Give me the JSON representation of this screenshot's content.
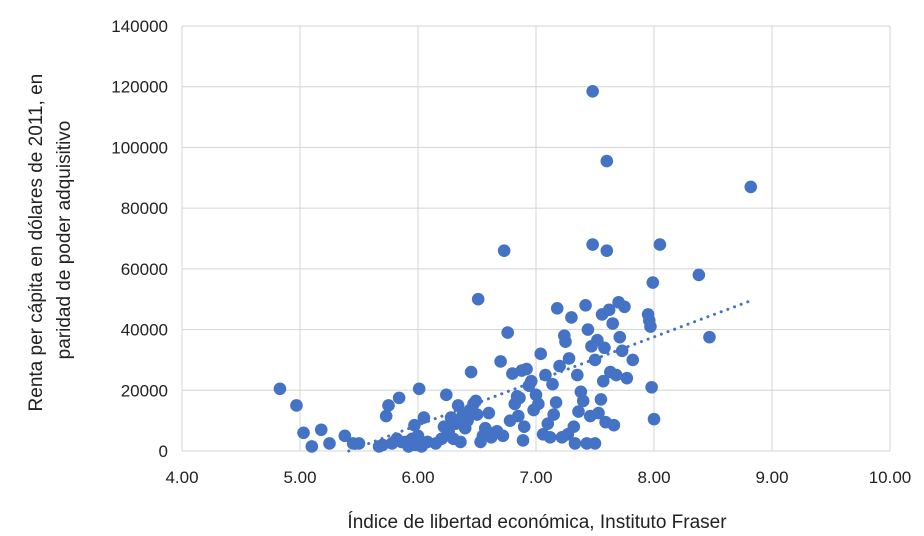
{
  "chart_data": {
    "type": "scatter",
    "xlabel": "Índice de libertad económica, Instituto Fraser",
    "ylabel": [
      "Renta per cápita en dólares de 2011, en",
      "paridad de poder adquisitivo"
    ],
    "xlim": [
      4.0,
      10.0
    ],
    "ylim": [
      0,
      140000
    ],
    "x_ticks": [
      "4.00",
      "5.00",
      "6.00",
      "7.00",
      "8.00",
      "9.00",
      "10.00"
    ],
    "y_ticks": [
      "0",
      "20000",
      "40000",
      "60000",
      "80000",
      "100000",
      "120000",
      "140000"
    ],
    "grid": true,
    "legend": "none",
    "colors": {
      "points": "#4472c4",
      "trendline": "#4472c4",
      "grid": "#d4d4d4"
    },
    "trendline": {
      "style": "dotted",
      "x": [
        5.0,
        8.82
      ],
      "y": [
        -6000,
        49500
      ]
    },
    "points": [
      [
        4.83,
        20500
      ],
      [
        4.97,
        15000
      ],
      [
        5.03,
        6000
      ],
      [
        5.1,
        1500
      ],
      [
        5.18,
        7000
      ],
      [
        5.25,
        2500
      ],
      [
        5.38,
        5000
      ],
      [
        5.45,
        2500
      ],
      [
        5.5,
        2500
      ],
      [
        5.67,
        1500
      ],
      [
        5.7,
        2000
      ],
      [
        5.73,
        11500
      ],
      [
        5.75,
        15000
      ],
      [
        5.78,
        2500
      ],
      [
        5.82,
        4000
      ],
      [
        5.84,
        17500
      ],
      [
        5.86,
        3000
      ],
      [
        5.9,
        3000
      ],
      [
        5.92,
        1500
      ],
      [
        5.95,
        4000
      ],
      [
        5.97,
        8500
      ],
      [
        5.98,
        2000
      ],
      [
        6.0,
        5000
      ],
      [
        6.01,
        20500
      ],
      [
        6.03,
        1500
      ],
      [
        6.05,
        11000
      ],
      [
        6.08,
        3000
      ],
      [
        6.15,
        2500
      ],
      [
        6.2,
        4000
      ],
      [
        6.22,
        8000
      ],
      [
        6.24,
        18500
      ],
      [
        6.26,
        6500
      ],
      [
        6.28,
        11000
      ],
      [
        6.3,
        4000
      ],
      [
        6.32,
        9000
      ],
      [
        6.34,
        15000
      ],
      [
        6.36,
        3000
      ],
      [
        6.38,
        12000
      ],
      [
        6.4,
        7500
      ],
      [
        6.42,
        10000
      ],
      [
        6.44,
        13500
      ],
      [
        6.45,
        26000
      ],
      [
        6.47,
        15500
      ],
      [
        6.49,
        16500
      ],
      [
        6.5,
        12000
      ],
      [
        6.51,
        50000
      ],
      [
        6.53,
        3000
      ],
      [
        6.55,
        5000
      ],
      [
        6.57,
        7500
      ],
      [
        6.6,
        12500
      ],
      [
        6.62,
        4500
      ],
      [
        6.65,
        6000
      ],
      [
        6.67,
        6500
      ],
      [
        6.7,
        29500
      ],
      [
        6.72,
        5000
      ],
      [
        6.73,
        66000
      ],
      [
        6.76,
        39000
      ],
      [
        6.78,
        10000
      ],
      [
        6.8,
        25500
      ],
      [
        6.82,
        15500
      ],
      [
        6.84,
        18000
      ],
      [
        6.85,
        11500
      ],
      [
        6.86,
        17500
      ],
      [
        6.88,
        26500
      ],
      [
        6.89,
        3500
      ],
      [
        6.9,
        8000
      ],
      [
        6.92,
        27000
      ],
      [
        6.94,
        21500
      ],
      [
        6.96,
        23000
      ],
      [
        6.98,
        13500
      ],
      [
        7.0,
        18500
      ],
      [
        7.02,
        15500
      ],
      [
        7.04,
        32000
      ],
      [
        7.06,
        5500
      ],
      [
        7.08,
        25000
      ],
      [
        7.1,
        9000
      ],
      [
        7.12,
        4500
      ],
      [
        7.14,
        22000
      ],
      [
        7.15,
        12000
      ],
      [
        7.17,
        16000
      ],
      [
        7.18,
        47000
      ],
      [
        7.2,
        28000
      ],
      [
        7.22,
        4500
      ],
      [
        7.24,
        38000
      ],
      [
        7.25,
        36000
      ],
      [
        7.27,
        5500
      ],
      [
        7.28,
        30500
      ],
      [
        7.3,
        44000
      ],
      [
        7.32,
        8000
      ],
      [
        7.33,
        2500
      ],
      [
        7.35,
        25000
      ],
      [
        7.36,
        13000
      ],
      [
        7.38,
        19500
      ],
      [
        7.4,
        16500
      ],
      [
        7.42,
        48000
      ],
      [
        7.43,
        2500
      ],
      [
        7.44,
        40000
      ],
      [
        7.46,
        11500
      ],
      [
        7.47,
        34500
      ],
      [
        7.48,
        118500
      ],
      [
        7.48,
        68000
      ],
      [
        7.5,
        30000
      ],
      [
        7.5,
        2500
      ],
      [
        7.52,
        36500
      ],
      [
        7.53,
        12500
      ],
      [
        7.55,
        17000
      ],
      [
        7.56,
        45000
      ],
      [
        7.57,
        23000
      ],
      [
        7.58,
        34000
      ],
      [
        7.59,
        9500
      ],
      [
        7.6,
        95500
      ],
      [
        7.6,
        66000
      ],
      [
        7.62,
        46500
      ],
      [
        7.63,
        26000
      ],
      [
        7.65,
        42000
      ],
      [
        7.66,
        8500
      ],
      [
        7.68,
        25000
      ],
      [
        7.7,
        49000
      ],
      [
        7.71,
        37500
      ],
      [
        7.73,
        33000
      ],
      [
        7.75,
        47500
      ],
      [
        7.77,
        24000
      ],
      [
        7.82,
        30000
      ],
      [
        7.95,
        45000
      ],
      [
        7.96,
        43000
      ],
      [
        7.97,
        41000
      ],
      [
        7.98,
        21000
      ],
      [
        7.99,
        55500
      ],
      [
        8.0,
        10500
      ],
      [
        8.05,
        68000
      ],
      [
        8.38,
        58000
      ],
      [
        8.47,
        37500
      ],
      [
        8.82,
        87000
      ]
    ]
  }
}
